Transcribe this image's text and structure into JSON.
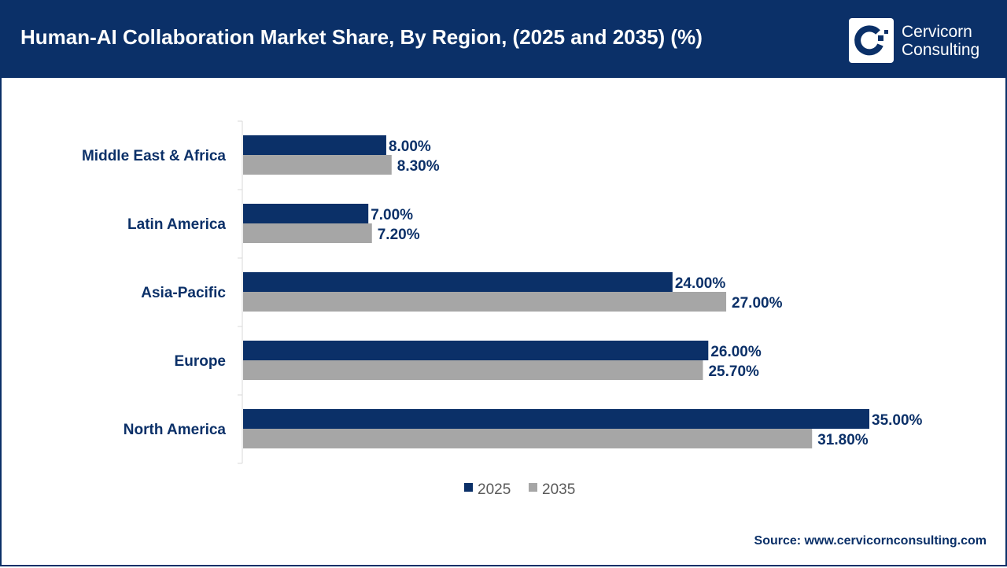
{
  "header": {
    "title": "Human-AI Collaboration Market Share, By Region, (2025 and 2035) (%)",
    "logo_line1": "Cervicorn",
    "logo_line2": "Consulting"
  },
  "source": "Source: www.cervicornconsulting.com",
  "colors": {
    "2025": "#0b3068",
    "2035": "#a6a6a6"
  },
  "chart_data": {
    "type": "bar",
    "orientation": "horizontal",
    "categories": [
      "Middle East & Africa",
      "Latin America",
      "Asia-Pacific",
      "Europe",
      "North America"
    ],
    "series": [
      {
        "name": "2025",
        "values": [
          8.0,
          7.0,
          24.0,
          26.0,
          35.0
        ],
        "labels": [
          "8.00%",
          "7.00%",
          "24.00%",
          "26.00%",
          "35.00%"
        ]
      },
      {
        "name": "2035",
        "values": [
          8.3,
          7.2,
          27.0,
          25.7,
          31.8
        ],
        "labels": [
          "8.30%",
          "7.20%",
          "27.00%",
          "25.70%",
          "31.80%"
        ]
      }
    ],
    "xlim": [
      0,
      35
    ],
    "grid": false,
    "legend": "bottom"
  }
}
